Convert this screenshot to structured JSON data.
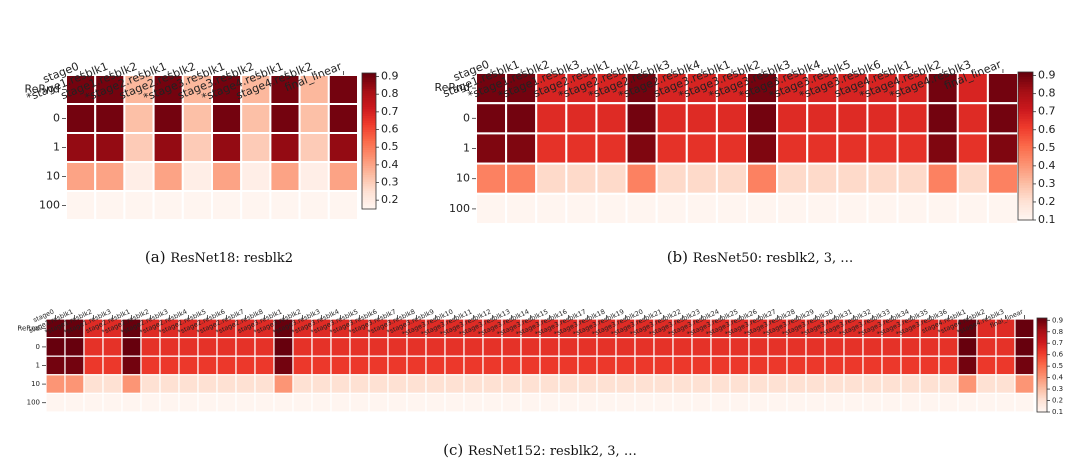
{
  "chart_data": [
    {
      "type": "heatmap",
      "caption_label": "(a)",
      "caption_text": "ResNet18: resbl​k2",
      "columns": [
        "stage0",
        "*stage1.resblk1",
        "stage1.resblk2",
        "*stage2.resblk1",
        "stage2.resblk2",
        "*stage3.resblk1",
        "stage3.resblk2",
        "*stage4.resblk1",
        "stage4.resblk2",
        "final_linear"
      ],
      "rows": [
        "ReRnd",
        "0",
        "1",
        "10",
        "100"
      ],
      "values": [
        [
          0.9,
          0.9,
          0.35,
          0.9,
          0.35,
          0.9,
          0.35,
          0.9,
          0.35,
          0.9
        ],
        [
          0.9,
          0.9,
          0.33,
          0.9,
          0.33,
          0.9,
          0.33,
          0.9,
          0.33,
          0.9
        ],
        [
          0.85,
          0.85,
          0.3,
          0.85,
          0.3,
          0.85,
          0.3,
          0.85,
          0.3,
          0.85
        ],
        [
          0.4,
          0.4,
          0.18,
          0.4,
          0.18,
          0.4,
          0.18,
          0.4,
          0.18,
          0.4
        ],
        [
          0.15,
          0.15,
          0.15,
          0.15,
          0.15,
          0.15,
          0.15,
          0.15,
          0.15,
          0.15
        ]
      ],
      "colorbar_ticks": [
        "0.9",
        "0.8",
        "0.7",
        "0.6",
        "0.5",
        "0.4",
        "0.3",
        "0.2"
      ],
      "vmin": 0.15,
      "vmax": 0.92
    },
    {
      "type": "heatmap",
      "caption_label": "(b)",
      "caption_text": "ResNet50: resblk2, 3, …",
      "columns": [
        "stage0",
        "stage1.resblk1",
        "*stage1.resblk2",
        "*stage1.resblk3",
        "stage2.resblk1",
        "*stage2.resblk2",
        "*stage2.resblk3",
        "*stage2.resblk4",
        "stage3.resblk1",
        "*stage3.resblk2",
        "*stage3.resblk3",
        "*stage3.resblk4",
        "*stage3.resblk5",
        "*stage3.resblk6",
        "stage4.resblk1",
        "*stage4.resblk2",
        "*stage4.resblk3",
        "final_linear"
      ],
      "rows": [
        "ReRnd",
        "0",
        "1",
        "10",
        "100"
      ],
      "values": [
        [
          0.9,
          0.9,
          0.68,
          0.68,
          0.68,
          0.9,
          0.68,
          0.68,
          0.68,
          0.9,
          0.68,
          0.68,
          0.68,
          0.68,
          0.68,
          0.9,
          0.68,
          0.9
        ],
        [
          0.9,
          0.9,
          0.66,
          0.66,
          0.66,
          0.9,
          0.66,
          0.66,
          0.66,
          0.9,
          0.66,
          0.66,
          0.66,
          0.66,
          0.66,
          0.9,
          0.66,
          0.9
        ],
        [
          0.88,
          0.88,
          0.64,
          0.64,
          0.64,
          0.88,
          0.64,
          0.64,
          0.64,
          0.88,
          0.64,
          0.64,
          0.64,
          0.64,
          0.64,
          0.88,
          0.64,
          0.88
        ],
        [
          0.45,
          0.45,
          0.22,
          0.22,
          0.22,
          0.45,
          0.22,
          0.22,
          0.22,
          0.45,
          0.22,
          0.22,
          0.22,
          0.22,
          0.22,
          0.45,
          0.22,
          0.45
        ],
        [
          0.1,
          0.1,
          0.1,
          0.1,
          0.1,
          0.1,
          0.1,
          0.1,
          0.1,
          0.1,
          0.1,
          0.1,
          0.1,
          0.1,
          0.1,
          0.1,
          0.1,
          0.1
        ]
      ],
      "colorbar_ticks": [
        "0.9",
        "0.8",
        "0.7",
        "0.6",
        "0.5",
        "0.4",
        "0.3",
        "0.2",
        "0.1"
      ],
      "vmin": 0.1,
      "vmax": 0.92
    },
    {
      "type": "heatmap",
      "caption_label": "(c)",
      "caption_text": "ResNet152: resblk2, 3, …",
      "columns": [
        "stage0",
        "stage1.resblk1",
        "*stage1.resblk2",
        "*stage1.resblk3",
        "stage2.resblk1",
        "*stage2.resblk2",
        "*stage2.resblk3",
        "*stage2.resblk4",
        "*stage2.resblk5",
        "*stage2.resblk6",
        "*stage2.resblk7",
        "*stage2.resblk8",
        "stage3.resblk1",
        "*stage3.resblk2",
        "*stage3.resblk3",
        "*stage3.resblk4",
        "*stage3.resblk5",
        "*stage3.resblk6",
        "*stage3.resblk7",
        "*stage3.resblk8",
        "*stage3.resblk9",
        "*stage3.resblk10",
        "*stage3.resblk11",
        "*stage3.resblk12",
        "*stage3.resblk13",
        "*stage3.resblk14",
        "*stage3.resblk15",
        "*stage3.resblk16",
        "*stage3.resblk17",
        "*stage3.resblk18",
        "*stage3.resblk19",
        "*stage3.resblk20",
        "*stage3.resblk21",
        "*stage3.resblk22",
        "*stage3.resblk23",
        "*stage3.resblk24",
        "*stage3.resblk25",
        "*stage3.resblk26",
        "*stage3.resblk27",
        "*stage3.resblk28",
        "*stage3.resblk29",
        "*stage3.resblk30",
        "*stage3.resblk31",
        "*stage3.resblk32",
        "*stage3.resblk33",
        "*stage3.resblk34",
        "*stage3.resblk35",
        "*stage3.resblk36",
        "stage4.resblk1",
        "*stage4.resblk2",
        "*stage4.resblk3",
        "final_linear"
      ],
      "rows": [
        "ReRnd",
        "0",
        "1",
        "10",
        "100"
      ],
      "high_columns": [
        0,
        1,
        4,
        12,
        48,
        51
      ],
      "row_values_high": [
        0.92,
        0.92,
        0.9,
        0.4,
        0.1
      ],
      "row_values_low": [
        0.66,
        0.64,
        0.62,
        0.2,
        0.1
      ],
      "colorbar_ticks": [
        "0.9",
        "0.8",
        "0.7",
        "0.6",
        "0.5",
        "0.4",
        "0.3",
        "0.2",
        "0.1"
      ],
      "vmin": 0.1,
      "vmax": 0.92
    }
  ]
}
